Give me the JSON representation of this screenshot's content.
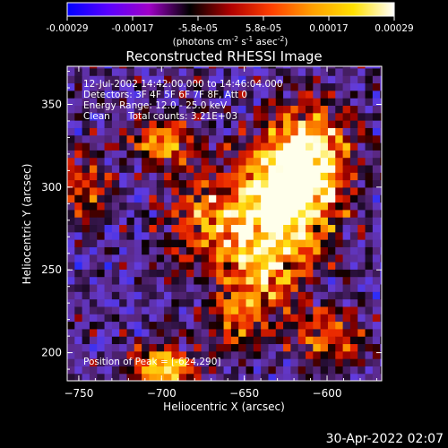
{
  "chart_data": {
    "type": "heatmap",
    "title": "Reconstructed RHESSI Image",
    "xlabel": "Heliocentric X (arcsec)",
    "ylabel": "Heliocentric Y (arcsec)",
    "xlim": [
      -757,
      -567
    ],
    "ylim": [
      183,
      373
    ],
    "x_ticks": [
      -750,
      -700,
      -650,
      -600
    ],
    "y_ticks": [
      200,
      250,
      300,
      350
    ],
    "colorbar": {
      "range": [
        -0.00029,
        0.00029
      ],
      "tick_labels": [
        "-0.00029",
        "-0.00017",
        "-5.8e-05",
        "5.8e-05",
        "0.00017",
        "0.00029"
      ],
      "label_prefix": "(photons cm",
      "label_exp1": "-2",
      "label_mid": " s",
      "label_exp2": "-1",
      "label_mid2": " asec",
      "label_exp3": "-2",
      "label_suffix": ")",
      "colors": [
        "#0000ff",
        "#5a00ff",
        "#a000c8",
        "#000000",
        "#b00000",
        "#ff4000",
        "#ffa000",
        "#ffe000",
        "#ffffff"
      ]
    },
    "annotations": {
      "time_range": "12-Jul-2002 14:42:00.000 to 14:46:04.000",
      "detectors": "Detectors: 3F 4F 5F 6F 7F 8F, Att 0",
      "energy": "Energy Range: 12.0 - 25.0 keV",
      "algorithm": "Clean",
      "counts": "Total counts: 3.21E+03",
      "peak": "Position of Peak = [-624,290]"
    },
    "peak_position": [
      -624,
      290
    ],
    "sources": [
      {
        "x": -625,
        "y": 290,
        "sx": 20,
        "sy": 25,
        "amp": 1.0
      },
      {
        "x": -610,
        "y": 320,
        "sx": 18,
        "sy": 22,
        "amp": 0.85
      },
      {
        "x": -700,
        "y": 328,
        "sx": 14,
        "sy": 10,
        "amp": 0.75
      },
      {
        "x": -670,
        "y": 280,
        "sx": 20,
        "sy": 20,
        "amp": 0.6
      },
      {
        "x": -640,
        "y": 250,
        "sx": 16,
        "sy": 18,
        "amp": 0.55
      },
      {
        "x": -700,
        "y": 190,
        "sx": 14,
        "sy": 10,
        "amp": 0.85
      },
      {
        "x": -655,
        "y": 220,
        "sx": 14,
        "sy": 14,
        "amp": 0.55
      },
      {
        "x": -745,
        "y": 300,
        "sx": 10,
        "sy": 16,
        "amp": 0.5
      },
      {
        "x": -600,
        "y": 210,
        "sx": 14,
        "sy": 12,
        "amp": 0.6
      }
    ]
  },
  "footer": {
    "timestamp": "30-Apr-2022 02:07"
  }
}
